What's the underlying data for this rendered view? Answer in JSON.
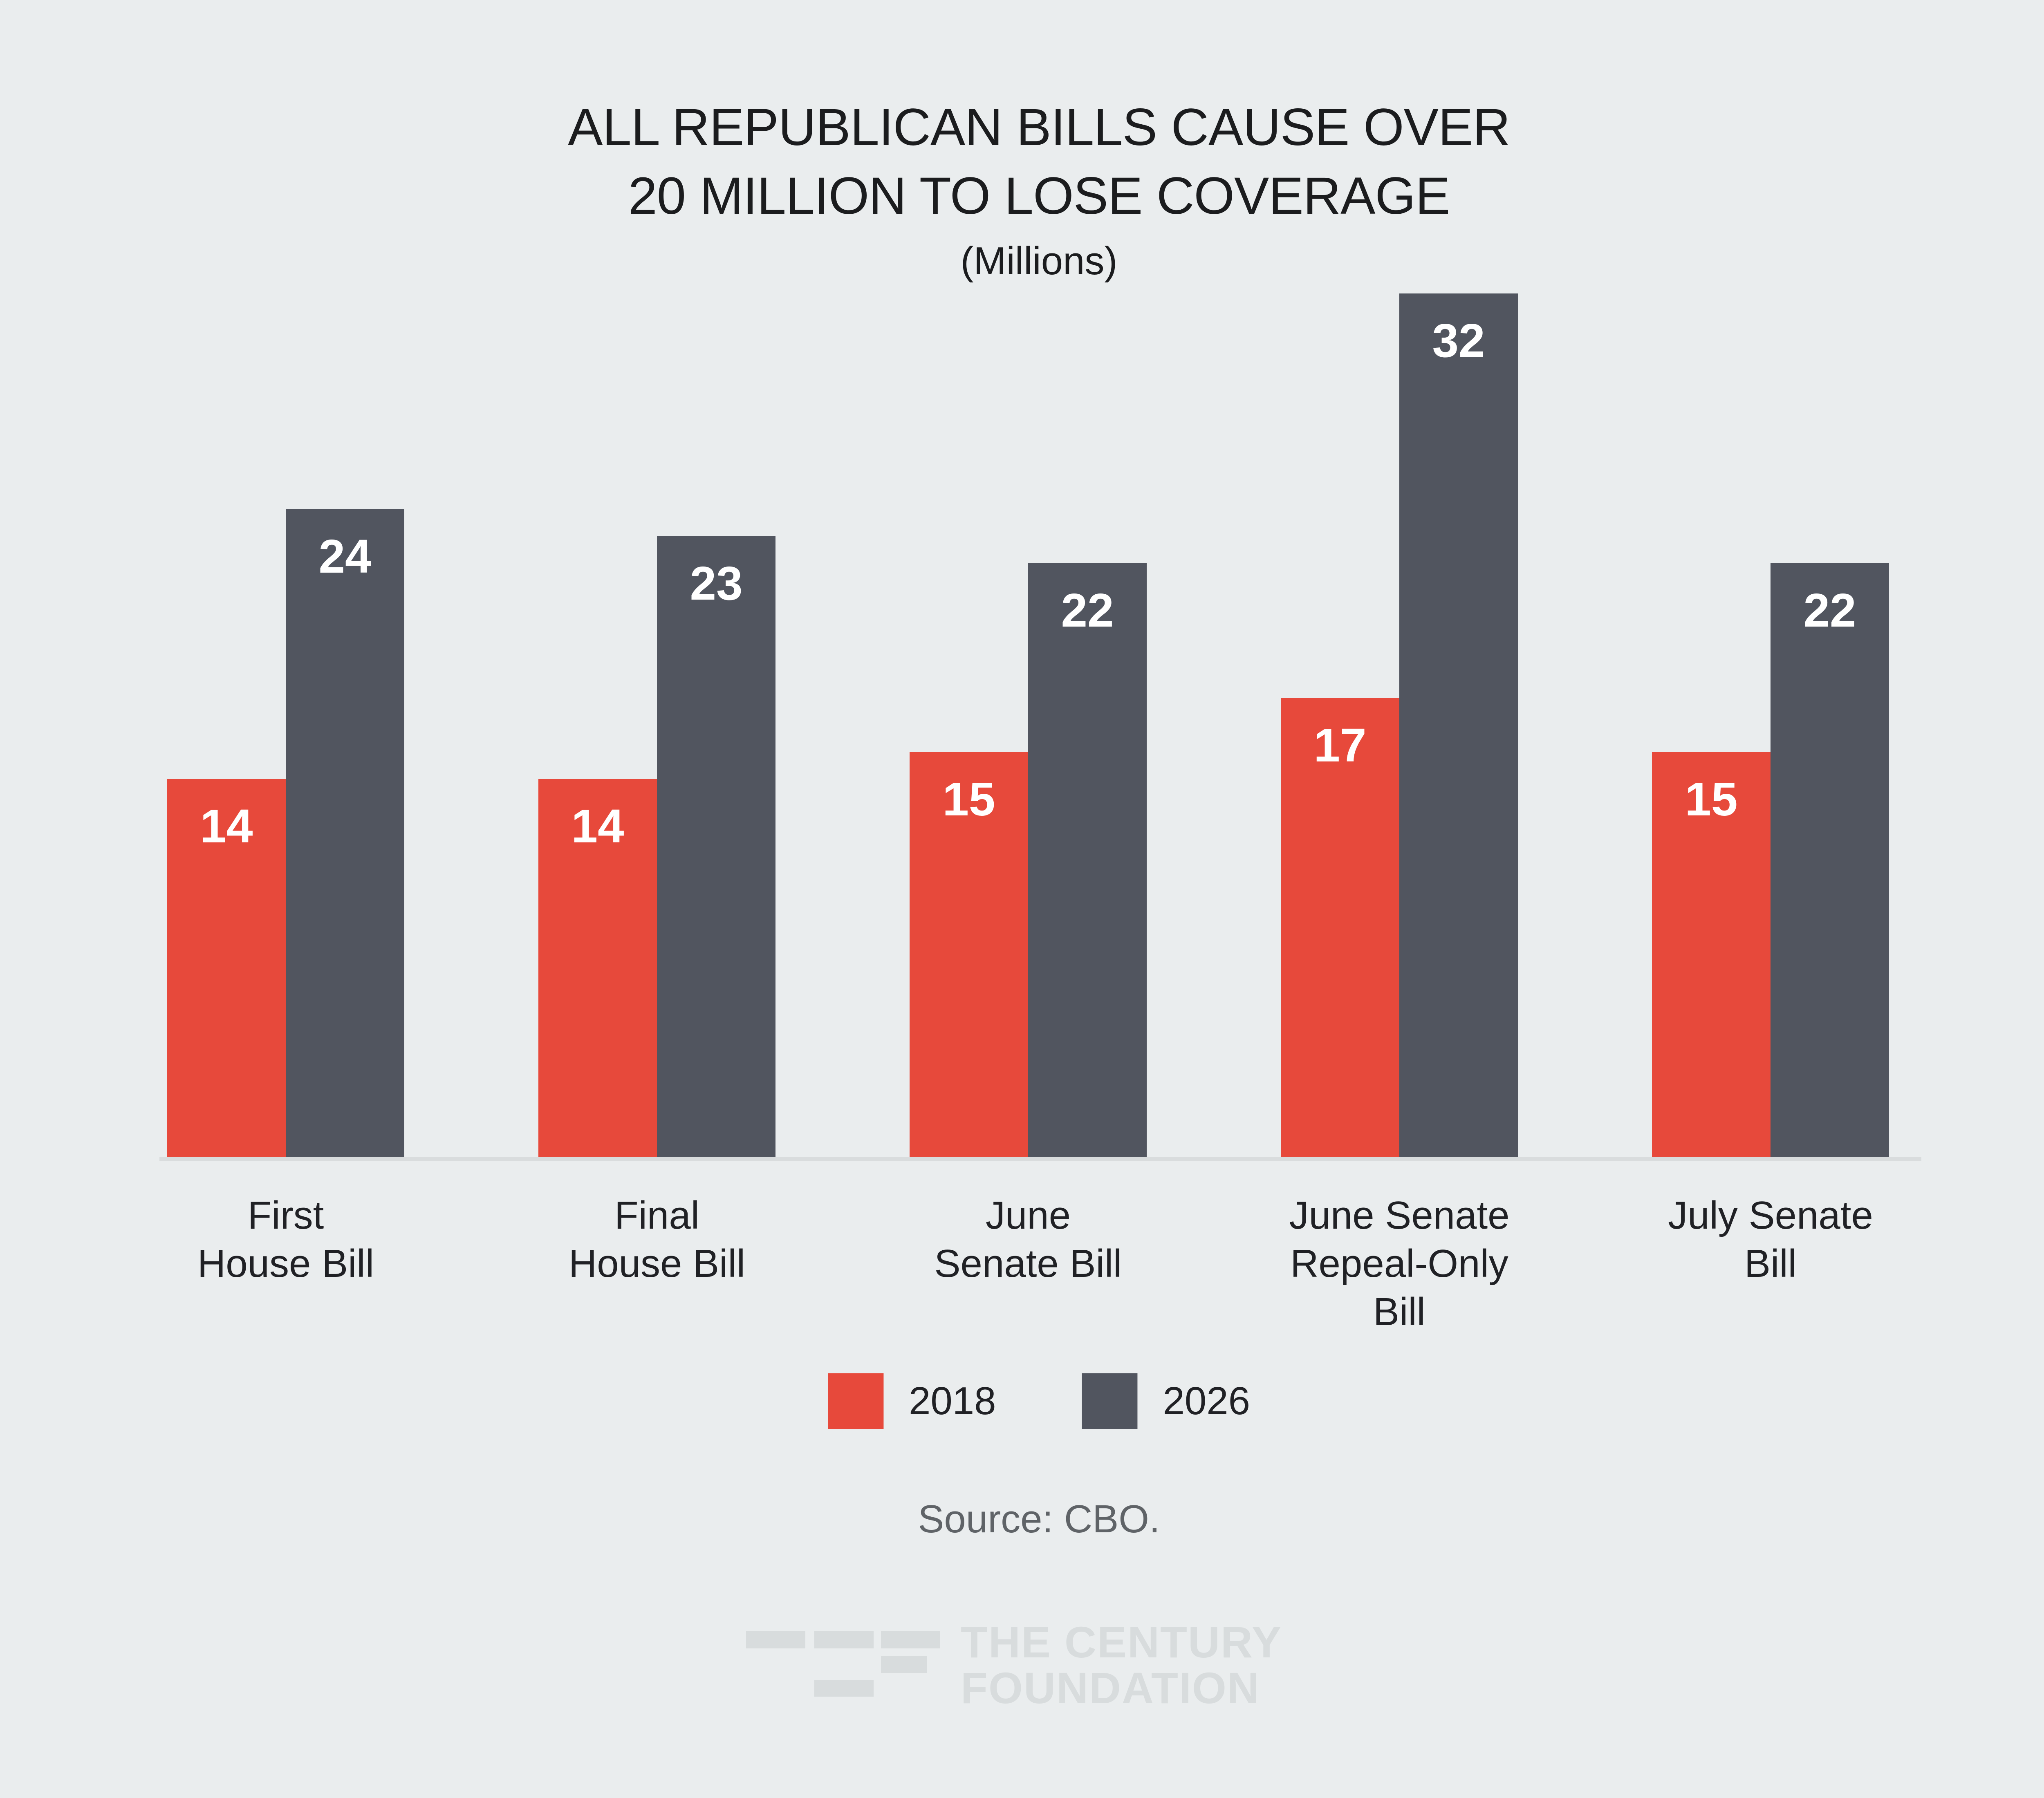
{
  "header": {
    "title_line1": "ALL REPUBLICAN BILLS CAUSE OVER",
    "title_line2": "20 MILLION TO LOSE COVERAGE",
    "subtitle": "(Millions)"
  },
  "chart_data": {
    "type": "bar",
    "title": "ALL REPUBLICAN BILLS CAUSE OVER 20 MILLION TO LOSE COVERAGE",
    "subtitle": "(Millions)",
    "categories": [
      "First House Bill",
      "Final House Bill",
      "June Senate Bill",
      "June Senate Repeal-Only Bill",
      "July Senate Bill"
    ],
    "category_lines": [
      [
        "First",
        "House Bill"
      ],
      [
        "Final",
        "House Bill"
      ],
      [
        "June",
        "Senate Bill"
      ],
      [
        "June Senate",
        "Repeal-Only",
        "Bill"
      ],
      [
        "July Senate",
        "Bill"
      ]
    ],
    "series": [
      {
        "name": "2018",
        "color": "#e7493b",
        "values": [
          14,
          14,
          15,
          17,
          15
        ]
      },
      {
        "name": "2026",
        "color": "#51555f",
        "values": [
          24,
          23,
          22,
          32,
          22
        ]
      }
    ],
    "value_labels": "inside-top",
    "ylim": [
      0,
      32
    ],
    "grid": false,
    "legend_position": "bottom",
    "source": "Source: CBO."
  },
  "legend": {
    "items": [
      {
        "label": "2018",
        "color": "#e7493b"
      },
      {
        "label": "2026",
        "color": "#51555f"
      }
    ]
  },
  "footer": {
    "source": "Source: CBO.",
    "logo_line1": "THE CENTURY",
    "logo_line2": "FOUNDATION"
  },
  "colors": {
    "background": "#eaedee",
    "baseline": "#d9dcdd",
    "logo": "#d8dcdd",
    "title_text": "#1b1c1e",
    "label_text": "#202125",
    "source_text": "#5f6367",
    "value_text": "#ffffff"
  }
}
